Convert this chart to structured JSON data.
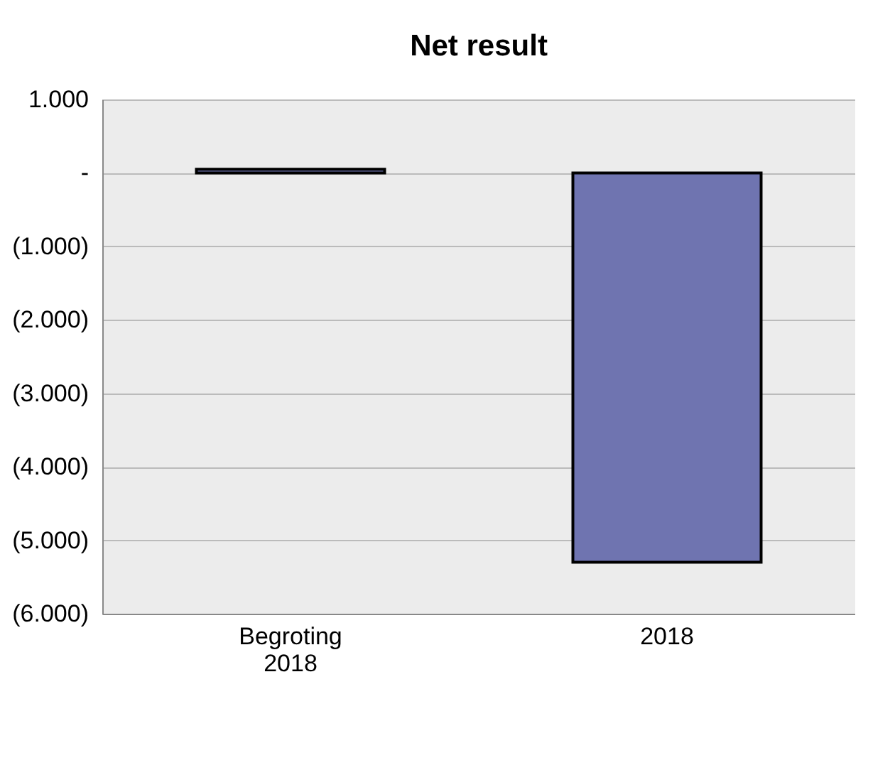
{
  "chart_data": {
    "type": "bar",
    "title": "Net result",
    "categories": [
      "Begroting 2018",
      "2018"
    ],
    "values": [
      50,
      -5300
    ],
    "colors": [
      "#6f74b0",
      "#6f74b0"
    ],
    "ylim": [
      -6000,
      1000
    ],
    "yticks": [
      {
        "value": 1000,
        "label": "1.000"
      },
      {
        "value": 0,
        "label": "-"
      },
      {
        "value": -1000,
        "label": "(1.000)"
      },
      {
        "value": -2000,
        "label": "(2.000)"
      },
      {
        "value": -3000,
        "label": "(3.000)"
      },
      {
        "value": -4000,
        "label": "(4.000)"
      },
      {
        "value": -5000,
        "label": "(5.000)"
      },
      {
        "value": -6000,
        "label": "(6.000)"
      }
    ],
    "grid": "y"
  }
}
